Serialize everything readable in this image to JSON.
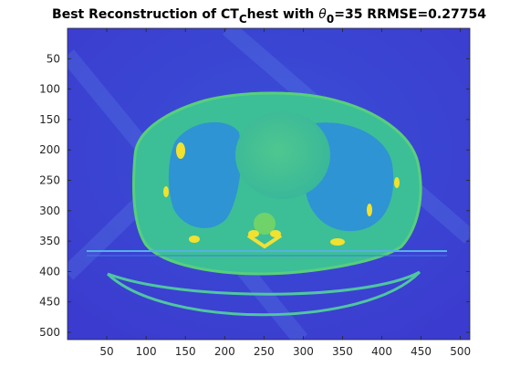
{
  "figure": {
    "title": {
      "part1": "Best Reconstruction of CT",
      "sub1": "C",
      "part2": "hest with ",
      "theta": "θ",
      "sub2": "0",
      "part3": "=35 RRMSE=0.27754"
    },
    "colors": {
      "background": "#3e26a8",
      "body": "#3fbf8f",
      "body_light": "#5ec962",
      "highlight": "#f2e12f",
      "lung": "#2f6de1",
      "axis": "#262626"
    },
    "image_extent": {
      "x": [
        0,
        512
      ],
      "y": [
        0,
        512
      ]
    }
  },
  "axes": {
    "x_ticks": [
      {
        "value": 50,
        "label": "50"
      },
      {
        "value": 100,
        "label": "100"
      },
      {
        "value": 150,
        "label": "150"
      },
      {
        "value": 200,
        "label": "200"
      },
      {
        "value": 250,
        "label": "250"
      },
      {
        "value": 300,
        "label": "300"
      },
      {
        "value": 350,
        "label": "350"
      },
      {
        "value": 400,
        "label": "400"
      },
      {
        "value": 450,
        "label": "450"
      },
      {
        "value": 500,
        "label": "500"
      }
    ],
    "y_ticks": [
      {
        "value": 50,
        "label": "50"
      },
      {
        "value": 100,
        "label": "100"
      },
      {
        "value": 150,
        "label": "150"
      },
      {
        "value": 200,
        "label": "200"
      },
      {
        "value": 250,
        "label": "250"
      },
      {
        "value": 300,
        "label": "300"
      },
      {
        "value": 350,
        "label": "350"
      },
      {
        "value": 400,
        "label": "400"
      },
      {
        "value": 450,
        "label": "450"
      },
      {
        "value": 500,
        "label": "500"
      }
    ]
  }
}
